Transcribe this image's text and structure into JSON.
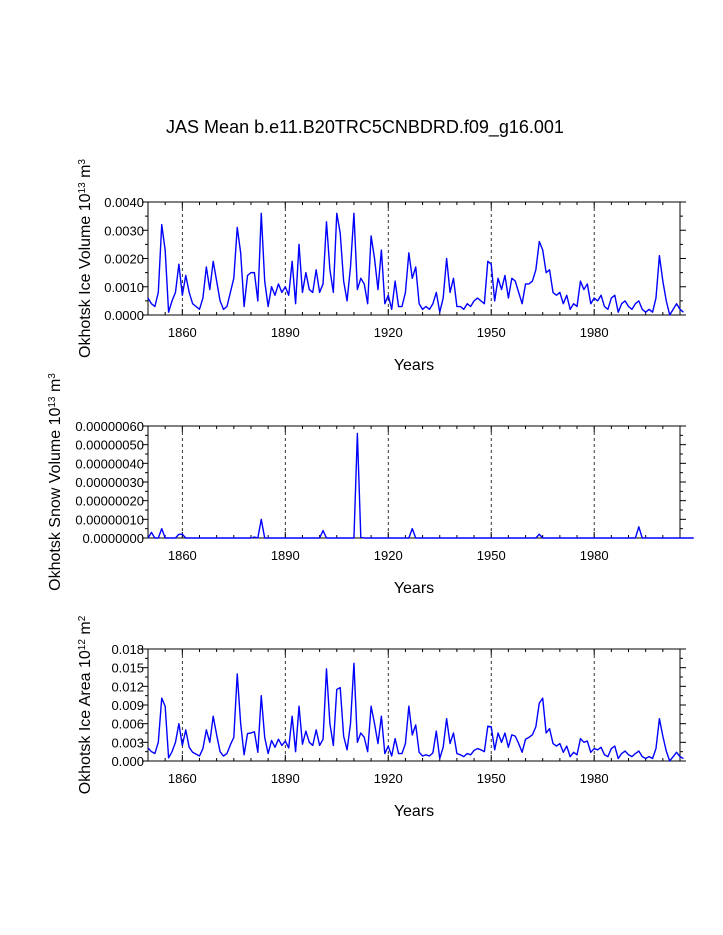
{
  "figure": {
    "title": "JAS Mean b.e11.B20TRC5CNBDRD.f09_g16.001"
  },
  "chart_data": [
    {
      "type": "line",
      "title": "",
      "xlabel": "Years",
      "ylabel": "Okhotsk Ice Volume 10",
      "ylabel_exponent": "13",
      "ylabel_unit": " m",
      "ylabel_unit_exponent": "3",
      "xlim": [
        1850,
        2005
      ],
      "ylim": [
        0,
        0.004
      ],
      "xticks": [
        1860,
        1890,
        1920,
        1950,
        1980
      ],
      "xtick_labels": [
        "1860",
        "1890",
        "1920",
        "1950",
        "1980"
      ],
      "yticks": [
        0,
        0.001,
        0.002,
        0.003,
        0.004
      ],
      "ytick_labels": [
        "0.0000",
        "0.0010",
        "0.0020",
        "0.0030",
        "0.0040"
      ],
      "grid_x": true,
      "series": [
        {
          "name": "ice_volume",
          "color": "#0000ff",
          "x_start": 1850,
          "x_step": 1,
          "values": [
            0.0006,
            0.0004,
            0.0003,
            0.0008,
            0.0032,
            0.0023,
            0.0001,
            0.0005,
            0.0008,
            0.0018,
            0.0007,
            0.0014,
            0.0008,
            0.0004,
            0.0003,
            0.0002,
            0.0006,
            0.0017,
            0.0009,
            0.0019,
            0.0012,
            0.0005,
            0.0002,
            0.0003,
            0.0008,
            0.0013,
            0.0031,
            0.0022,
            0.0003,
            0.0014,
            0.0015,
            0.0015,
            0.0005,
            0.0036,
            0.0012,
            0.0003,
            0.001,
            0.0007,
            0.0011,
            0.0008,
            0.001,
            0.0007,
            0.0019,
            0.0004,
            0.0025,
            0.0008,
            0.0015,
            0.0009,
            0.0008,
            0.0016,
            0.0008,
            0.0011,
            0.0033,
            0.0016,
            0.0008,
            0.0036,
            0.0029,
            0.0012,
            0.0005,
            0.0017,
            0.0036,
            0.0009,
            0.0013,
            0.0011,
            0.0004,
            0.0028,
            0.002,
            0.0009,
            0.0023,
            0.0004,
            0.0007,
            0.0002,
            0.0012,
            0.0003,
            0.0003,
            0.0008,
            0.0022,
            0.0013,
            0.0017,
            0.0004,
            0.0002,
            0.0003,
            0.0002,
            0.0004,
            0.0008,
            0.0001,
            0.0006,
            0.002,
            0.0008,
            0.0013,
            0.0003,
            0.0003,
            0.0002,
            0.0004,
            0.0003,
            0.0005,
            0.0006,
            0.0005,
            0.0004,
            0.0019,
            0.0018,
            0.0005,
            0.0013,
            0.0009,
            0.0014,
            0.0006,
            0.0013,
            0.0012,
            0.0008,
            0.0004,
            0.0011,
            0.0011,
            0.0012,
            0.0016,
            0.0026,
            0.0023,
            0.0015,
            0.0016,
            0.0008,
            0.0007,
            0.0008,
            0.0004,
            0.0007,
            0.0002,
            0.0004,
            0.0003,
            0.0012,
            0.0009,
            0.0011,
            0.0004,
            0.0006,
            0.0005,
            0.0007,
            0.0003,
            0.0002,
            0.0006,
            0.0007,
            0.0001,
            0.0004,
            0.0005,
            0.0003,
            0.0002,
            0.0004,
            0.0005,
            0.0002,
            0.0001,
            0.0002,
            0.0001,
            0.0006,
            0.0021,
            0.0012,
            0.0005,
            0.0,
            0.0002,
            0.0004,
            0.0002,
            0.0001
          ]
        }
      ]
    },
    {
      "type": "line",
      "title": "",
      "xlabel": "Years",
      "ylabel": "Okhotsk Snow Volume 10",
      "ylabel_exponent": "13",
      "ylabel_unit": " m",
      "ylabel_unit_exponent": "3",
      "xlim": [
        1850,
        2005
      ],
      "ylim": [
        0,
        6e-07
      ],
      "xticks": [
        1860,
        1890,
        1920,
        1950,
        1980
      ],
      "xtick_labels": [
        "1860",
        "1890",
        "1920",
        "1950",
        "1980"
      ],
      "yticks": [
        0,
        1e-07,
        2e-07,
        3e-07,
        4e-07,
        5e-07,
        6e-07
      ],
      "ytick_labels": [
        "0.0000000",
        "0.00000010",
        "0.00000020",
        "0.00000030",
        "0.00000040",
        "0.00000050",
        "0.00000060"
      ],
      "grid_x": true,
      "series": [
        {
          "name": "snow_volume",
          "color": "#0000ff",
          "x_start": 1850,
          "x_step": 1,
          "values": [
            0.0,
            3e-08,
            0.0,
            0.0,
            5e-08,
            0.0,
            0.0,
            0.0,
            0.0,
            2e-08,
            2e-08,
            0.0,
            0.0,
            0.0,
            0.0,
            0.0,
            0.0,
            0.0,
            0.0,
            0.0,
            0.0,
            0.0,
            0.0,
            0.0,
            0.0,
            0.0,
            0.0,
            0.0,
            0.0,
            0.0,
            0.0,
            5e-09,
            0.0,
            1e-07,
            0.0,
            0.0,
            0.0,
            0.0,
            0.0,
            0.0,
            0.0,
            0.0,
            0.0,
            0.0,
            0.0,
            0.0,
            0.0,
            0.0,
            0.0,
            0.0,
            0.0,
            4e-08,
            0.0,
            0.0,
            0.0,
            0.0,
            0.0,
            0.0,
            0.0,
            0.0,
            0.0,
            5.6e-07,
            5e-09,
            0.0,
            0.0,
            0.0,
            0.0,
            0.0,
            0.0,
            0.0,
            0.0,
            0.0,
            0.0,
            0.0,
            0.0,
            0.0,
            0.0,
            5e-08,
            0.0,
            0.0,
            0.0,
            0.0,
            0.0,
            0.0,
            0.0,
            0.0,
            0.0,
            0.0,
            0.0,
            0.0,
            0.0,
            0.0,
            0.0,
            0.0,
            0.0,
            0.0,
            0.0,
            0.0,
            0.0,
            0.0,
            0.0,
            0.0,
            0.0,
            0.0,
            0.0,
            0.0,
            0.0,
            0.0,
            0.0,
            0.0,
            0.0,
            0.0,
            0.0,
            0.0,
            2e-08,
            0.0,
            0.0,
            0.0,
            0.0,
            0.0,
            0.0,
            0.0,
            0.0,
            0.0,
            0.0,
            0.0,
            0.0,
            0.0,
            0.0,
            0.0,
            0.0,
            0.0,
            0.0,
            0.0,
            0.0,
            0.0,
            0.0,
            0.0,
            0.0,
            0.0,
            0.0,
            0.0,
            0.0,
            6e-08,
            0.0,
            0.0,
            0.0,
            0.0,
            0.0,
            0.0,
            0.0,
            0.0,
            0.0,
            0.0,
            0.0,
            0.0,
            0.0,
            0.0,
            0.0,
            0.0
          ]
        }
      ]
    },
    {
      "type": "line",
      "title": "",
      "xlabel": "Years",
      "ylabel": "Okhotsk Ice Area 10",
      "ylabel_exponent": "12",
      "ylabel_unit": " m",
      "ylabel_unit_exponent": "2",
      "xlim": [
        1850,
        2005
      ],
      "ylim": [
        0,
        0.018
      ],
      "xticks": [
        1860,
        1890,
        1920,
        1950,
        1980
      ],
      "xtick_labels": [
        "1860",
        "1890",
        "1920",
        "1950",
        "1980"
      ],
      "yticks": [
        0,
        0.003,
        0.006,
        0.009,
        0.012,
        0.015,
        0.018
      ],
      "ytick_labels": [
        "0.000",
        "0.003",
        "0.006",
        "0.009",
        "0.012",
        "0.015",
        "0.018"
      ],
      "grid_x": true,
      "series": [
        {
          "name": "ice_area",
          "color": "#0000ff",
          "x_start": 1850,
          "x_step": 1,
          "values": [
            0.0021,
            0.0015,
            0.0012,
            0.003,
            0.0101,
            0.0088,
            0.0005,
            0.0015,
            0.003,
            0.006,
            0.0025,
            0.005,
            0.0022,
            0.0014,
            0.0011,
            0.0008,
            0.002,
            0.005,
            0.003,
            0.0072,
            0.0042,
            0.0015,
            0.0008,
            0.0012,
            0.0026,
            0.0038,
            0.014,
            0.006,
            0.001,
            0.0044,
            0.0045,
            0.0047,
            0.0014,
            0.0105,
            0.0038,
            0.0012,
            0.0033,
            0.0022,
            0.0035,
            0.0025,
            0.0032,
            0.0021,
            0.0072,
            0.0015,
            0.0088,
            0.0027,
            0.0048,
            0.003,
            0.0025,
            0.005,
            0.0025,
            0.0035,
            0.0148,
            0.006,
            0.0025,
            0.0115,
            0.0118,
            0.004,
            0.0018,
            0.006,
            0.0157,
            0.003,
            0.0045,
            0.0038,
            0.0015,
            0.0088,
            0.006,
            0.0028,
            0.0072,
            0.0012,
            0.0024,
            0.0008,
            0.0036,
            0.0012,
            0.0012,
            0.0028,
            0.0088,
            0.0042,
            0.0058,
            0.0014,
            0.0008,
            0.001,
            0.0008,
            0.0013,
            0.0048,
            0.0004,
            0.0022,
            0.0068,
            0.0028,
            0.0045,
            0.0012,
            0.001,
            0.0007,
            0.0012,
            0.001,
            0.0017,
            0.002,
            0.0018,
            0.0015,
            0.0056,
            0.0055,
            0.0018,
            0.0045,
            0.003,
            0.0045,
            0.0022,
            0.0042,
            0.004,
            0.0028,
            0.0014,
            0.0035,
            0.0038,
            0.0042,
            0.0055,
            0.0093,
            0.0101,
            0.0045,
            0.0052,
            0.0028,
            0.0024,
            0.0028,
            0.0014,
            0.0024,
            0.0007,
            0.0014,
            0.001,
            0.0036,
            0.003,
            0.0032,
            0.0014,
            0.002,
            0.0018,
            0.0022,
            0.001,
            0.0007,
            0.002,
            0.0024,
            0.0004,
            0.0012,
            0.0016,
            0.001,
            0.0007,
            0.0012,
            0.0016,
            0.0007,
            0.0004,
            0.0007,
            0.0004,
            0.002,
            0.0068,
            0.004,
            0.0016,
            0.0,
            0.0007,
            0.0014,
            0.0007,
            0.0004
          ]
        }
      ]
    }
  ]
}
